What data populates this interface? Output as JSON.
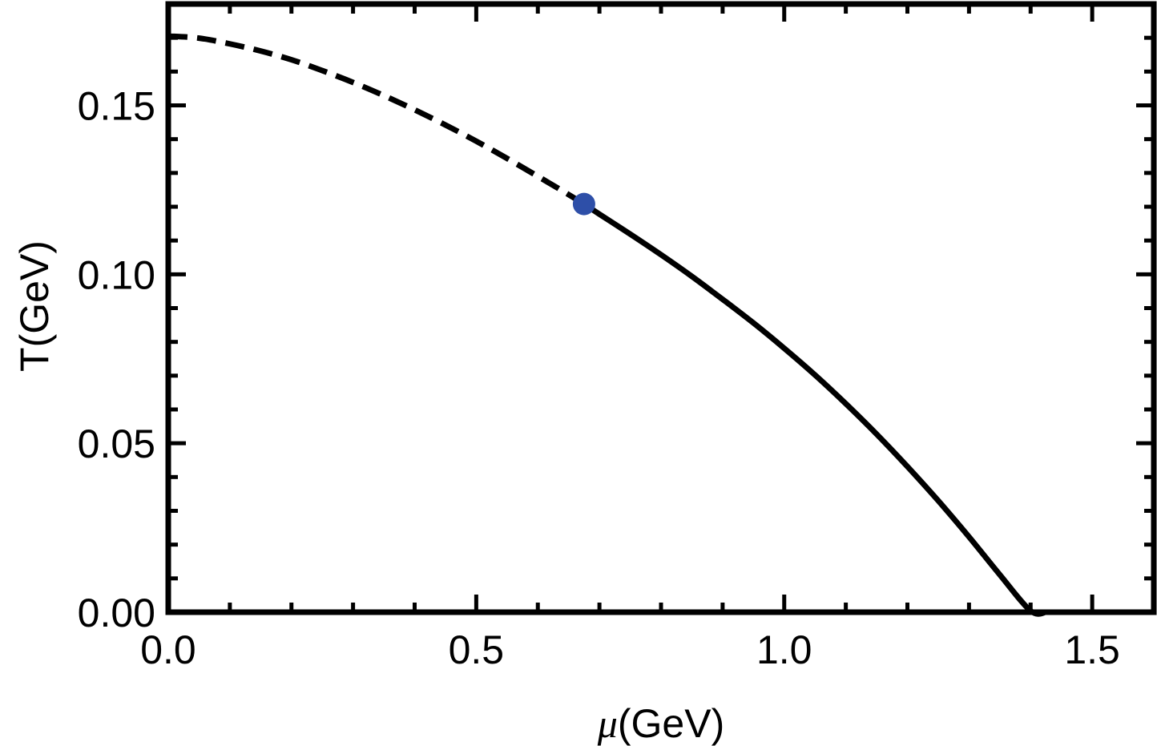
{
  "chart_data": {
    "type": "line",
    "title": "",
    "xlabel_symbol": "μ",
    "xlabel_unit": "(GeV)",
    "ylabel": "T(GeV)",
    "xlim": [
      0.0,
      1.6
    ],
    "ylim": [
      0.0,
      0.18
    ],
    "x_ticks": [
      0.0,
      0.5,
      1.0,
      1.5
    ],
    "x_tick_labels": [
      "0.0",
      "0.5",
      "1.0",
      "1.5"
    ],
    "x_minor_step": 0.1,
    "y_ticks": [
      0.0,
      0.05,
      0.1,
      0.15
    ],
    "y_tick_labels": [
      "0.00",
      "0.05",
      "0.10",
      "0.15"
    ],
    "y_minor_step": 0.01,
    "grid": false,
    "legend": "none",
    "series": [
      {
        "style": "dashed",
        "color": "#000000",
        "x": [
          0.0,
          0.05,
          0.1,
          0.15,
          0.2,
          0.25,
          0.3,
          0.35,
          0.4,
          0.45,
          0.5,
          0.55,
          0.6,
          0.65,
          0.675
        ],
        "y": [
          0.1705,
          0.1699,
          0.1682,
          0.1661,
          0.1635,
          0.1603,
          0.1568,
          0.1529,
          0.1487,
          0.1442,
          0.1394,
          0.1343,
          0.129,
          0.1236,
          0.1208
        ]
      },
      {
        "style": "solid",
        "color": "#000000",
        "x": [
          0.675,
          0.7,
          0.75,
          0.8,
          0.85,
          0.9,
          0.95,
          1.0,
          1.05,
          1.1,
          1.15,
          1.2,
          1.25,
          1.3,
          1.35,
          1.4,
          1.425
        ],
        "y": [
          0.1208,
          0.1178,
          0.1119,
          0.1058,
          0.0994,
          0.0926,
          0.0856,
          0.0781,
          0.0702,
          0.0617,
          0.0527,
          0.0431,
          0.033,
          0.0223,
          0.0111,
          0.0004,
          0.0
        ]
      }
    ],
    "points": [
      {
        "x": 0.675,
        "y": 0.1208,
        "color": "#2e4fa8"
      }
    ]
  }
}
